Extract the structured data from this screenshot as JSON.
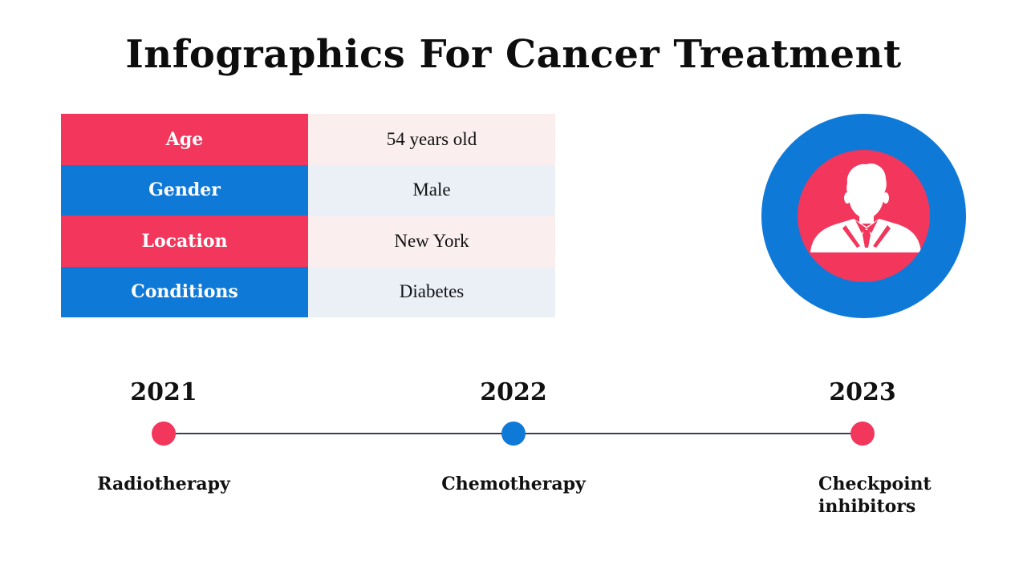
{
  "title": "Infographics For Cancer Treatment",
  "patient_info": {
    "rows": [
      {
        "label": "Age",
        "value": "54 years old",
        "color": "#f2365c"
      },
      {
        "label": "Gender",
        "value": "Male",
        "color": "#0f79d8"
      },
      {
        "label": "Location",
        "value": "New York",
        "color": "#f2365c"
      },
      {
        "label": "Conditions",
        "value": "Diabetes",
        "color": "#0f79d8"
      }
    ]
  },
  "avatar": {
    "icon": "person-icon",
    "ring_color": "#0f79d8",
    "inner_color": "#f2365c"
  },
  "timeline": {
    "items": [
      {
        "year": "2021",
        "label": "Radiotherapy",
        "dot_color": "#f2365c"
      },
      {
        "year": "2022",
        "label": "Chemotherapy",
        "dot_color": "#0f79d8"
      },
      {
        "year": "2023",
        "label": "Checkpoint inhibitors",
        "dot_color": "#f2365c"
      }
    ]
  },
  "colors": {
    "accent_pink": "#f2365c",
    "accent_blue": "#0f79d8",
    "line": "#3a4250"
  }
}
